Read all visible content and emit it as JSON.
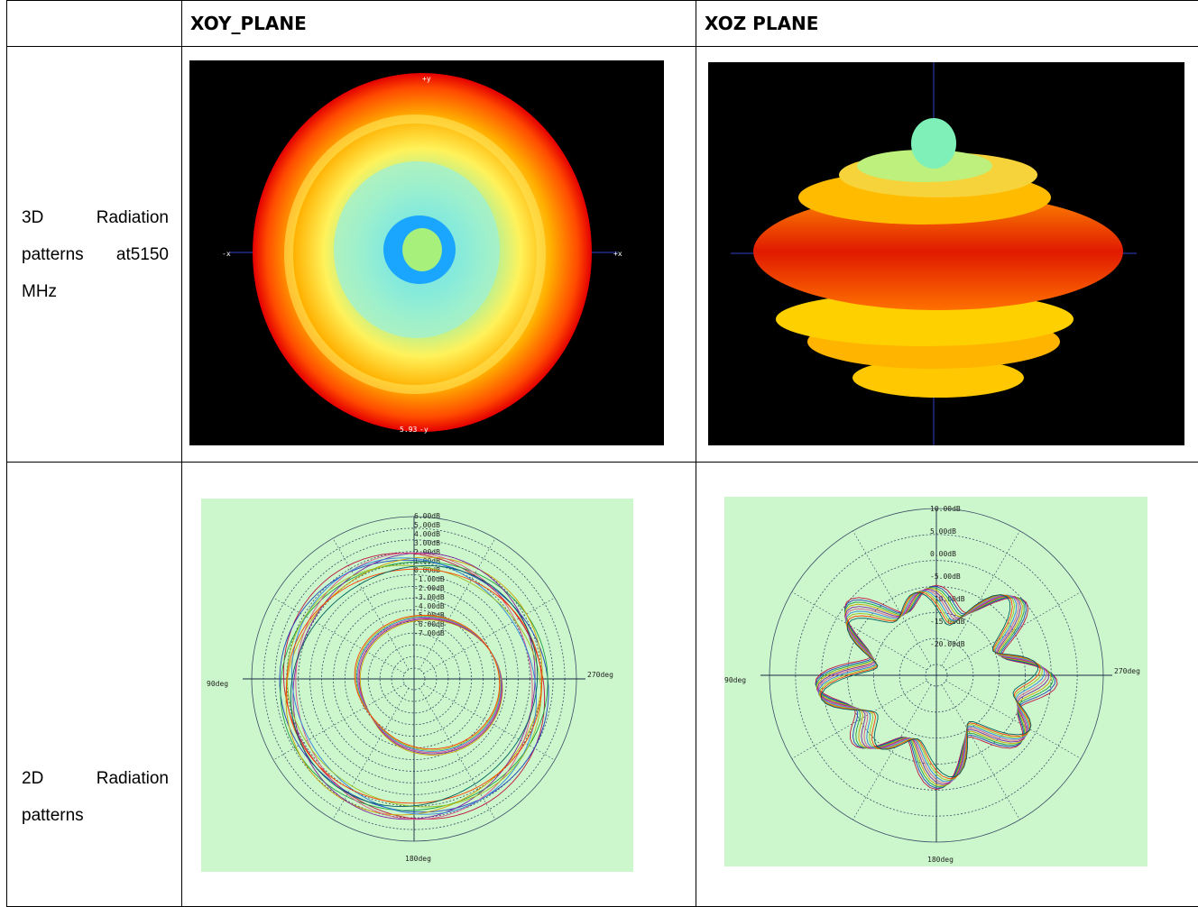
{
  "table": {
    "headers": [
      "",
      "XOY_PLANE",
      "XOZ PLANE"
    ],
    "rows": [
      {
        "label": "3D Radiation patterns at5150 MHz"
      },
      {
        "label": "2D Radiation patterns"
      }
    ]
  },
  "plots": {
    "xoy_3d": {
      "axes": [
        "+y",
        "+x",
        "-x",
        "-y"
      ],
      "marker": "5.93"
    },
    "xoy_2d": {
      "rings": [
        "6.00dB",
        "5.00dB",
        "4.00dB",
        "3.00dB",
        "2.00dB",
        "1.00dB",
        "0.00dB",
        "-1.00dB",
        "-2.00dB",
        "-3.00dB",
        "-4.00dB",
        "-5.00dB",
        "-6.00dB",
        "-7.00dB"
      ],
      "angle_left": "90deg",
      "angle_right": "270deg",
      "angle_bottom": "180deg"
    },
    "xoz_2d": {
      "rings": [
        "10.00dB",
        "5.00dB",
        "0.00dB",
        "-5.00dB",
        "-10.00dB",
        "-15.00dB",
        "-20.00dB"
      ],
      "angle_left": "90deg",
      "angle_right": "270deg",
      "angle_bottom": "180deg"
    }
  },
  "colors": {
    "plot_bg": "#ccf7cc",
    "render_bg": "#000000"
  }
}
